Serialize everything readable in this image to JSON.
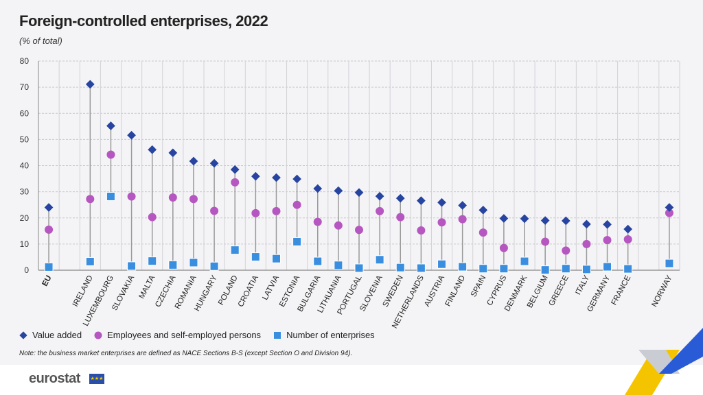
{
  "title": "Foreign-controlled enterprises, 2022",
  "subtitle": "(% of total)",
  "note": "Note: the business market enterprises are defined as NACE Sections B-S (except Section O and Division 94).",
  "logo": "eurostat",
  "colors": {
    "value_added": "#2644a0",
    "employees": "#b656c0",
    "enterprises": "#3a8ee0"
  },
  "chart_data": {
    "type": "scatter",
    "title": "Foreign-controlled enterprises, 2022",
    "ylabel": "(% of total)",
    "ylim": [
      0,
      80
    ],
    "yticks": [
      0,
      10,
      20,
      30,
      40,
      50,
      60,
      70,
      80
    ],
    "grid": true,
    "legend_placement": "bottom-left",
    "categories": [
      "EU",
      "",
      "IRELAND",
      "LUXEMBOURG",
      "SLOVAKIA",
      "MALTA",
      "CZECHIA",
      "ROMANIA",
      "HUNGARY",
      "POLAND",
      "CROATIA",
      "LATVIA",
      "ESTONIA",
      "BULGARIA",
      "LITHUANIA",
      "PORTUGAL",
      "SLOVENIA",
      "SWEDEN",
      "NETHERLANDS",
      "AUSTRIA",
      "FINLAND",
      "SPAIN",
      "CYPRUS",
      "DENMARK",
      "BELGIUM",
      "GREECE",
      "ITALY",
      "GERMANY",
      "FRANCE",
      "",
      "NORWAY"
    ],
    "series": [
      {
        "name": "Value added",
        "marker": "diamond",
        "values": [
          24.0,
          null,
          71.1,
          55.2,
          51.6,
          46.1,
          44.9,
          41.7,
          40.9,
          38.5,
          35.9,
          35.4,
          34.9,
          31.2,
          30.4,
          29.7,
          28.3,
          27.5,
          26.6,
          25.9,
          24.8,
          23.0,
          19.8,
          19.7,
          19.0,
          18.9,
          17.6,
          17.5,
          15.7,
          null,
          24.0
        ]
      },
      {
        "name": "Employees and self-employed persons",
        "marker": "circle",
        "values": [
          15.5,
          null,
          27.2,
          44.2,
          28.2,
          20.3,
          27.8,
          27.2,
          22.7,
          33.6,
          21.8,
          22.6,
          25.0,
          18.5,
          17.1,
          15.4,
          22.6,
          20.3,
          15.2,
          18.3,
          19.5,
          14.4,
          8.5,
          null,
          10.9,
          7.5,
          10.0,
          11.5,
          11.8,
          null,
          21.9
        ]
      },
      {
        "name": "Number of enterprises",
        "marker": "square",
        "values": [
          1.2,
          null,
          3.3,
          28.2,
          1.6,
          3.5,
          2.0,
          2.9,
          1.5,
          7.7,
          5.1,
          4.4,
          10.9,
          3.4,
          1.9,
          0.8,
          4.0,
          1.0,
          0.8,
          2.3,
          1.3,
          0.6,
          0.6,
          3.4,
          0.1,
          0.6,
          0.3,
          1.3,
          0.5,
          null,
          2.6
        ]
      }
    ]
  }
}
